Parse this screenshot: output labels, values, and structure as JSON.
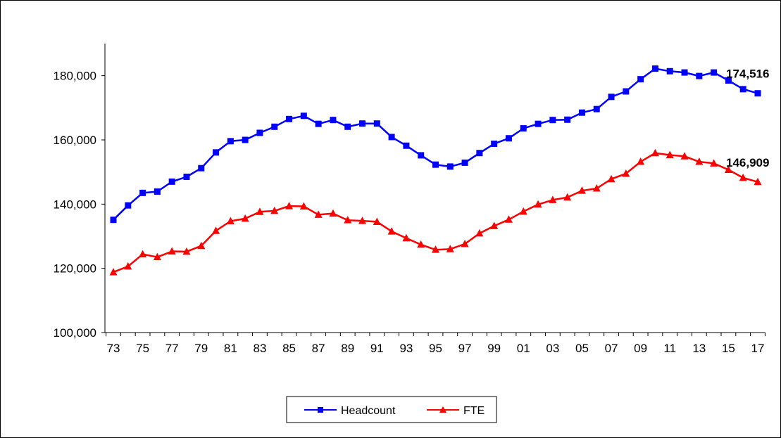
{
  "chart_data": {
    "type": "line",
    "categories": [
      "73",
      "74",
      "75",
      "76",
      "77",
      "78",
      "79",
      "80",
      "81",
      "82",
      "83",
      "84",
      "85",
      "86",
      "87",
      "88",
      "89",
      "90",
      "91",
      "92",
      "93",
      "94",
      "95",
      "96",
      "97",
      "98",
      "99",
      "00",
      "01",
      "02",
      "03",
      "04",
      "05",
      "06",
      "07",
      "08",
      "09",
      "10",
      "11",
      "12",
      "13",
      "14",
      "15",
      "16",
      "17"
    ],
    "x_tick_labels": [
      "73",
      "75",
      "77",
      "79",
      "81",
      "83",
      "85",
      "87",
      "89",
      "91",
      "93",
      "95",
      "97",
      "99",
      "01",
      "03",
      "05",
      "07",
      "09",
      "11",
      "13",
      "15",
      "17"
    ],
    "ylim": [
      100000,
      190000
    ],
    "y_ticks": [
      100000,
      120000,
      140000,
      160000,
      180000
    ],
    "y_tick_labels": [
      "100,000",
      "120,000",
      "140,000",
      "160,000",
      "180,000"
    ],
    "grid": false,
    "legend_position": "bottom-center",
    "series": [
      {
        "name": "Headcount",
        "color": "#0000ff",
        "marker": "square",
        "end_label": "174,516",
        "values": [
          135100,
          139600,
          143500,
          143900,
          147000,
          148500,
          151200,
          156100,
          159600,
          160000,
          162200,
          164100,
          166500,
          167500,
          165000,
          166200,
          164100,
          165100,
          165100,
          160900,
          158200,
          155200,
          152300,
          151700,
          152900,
          155900,
          158800,
          160500,
          163600,
          165000,
          166200,
          166300,
          168500,
          169600,
          173400,
          175100,
          178900,
          182200,
          181400,
          181000,
          179900,
          181000,
          178500,
          175800,
          174516
        ]
      },
      {
        "name": "FTE",
        "color": "#ff0000",
        "marker": "triangle",
        "end_label": "146,909",
        "values": [
          118800,
          120600,
          124400,
          123500,
          125300,
          125200,
          127000,
          131700,
          134700,
          135500,
          137600,
          137900,
          139400,
          139300,
          136700,
          137100,
          135000,
          134800,
          134500,
          131500,
          129400,
          127400,
          125800,
          126000,
          127600,
          130900,
          133200,
          135200,
          137700,
          139900,
          141300,
          142100,
          144200,
          144900,
          147800,
          149500,
          153200,
          155900,
          155300,
          154900,
          153200,
          152700,
          150700,
          148200,
          146909
        ]
      }
    ]
  }
}
